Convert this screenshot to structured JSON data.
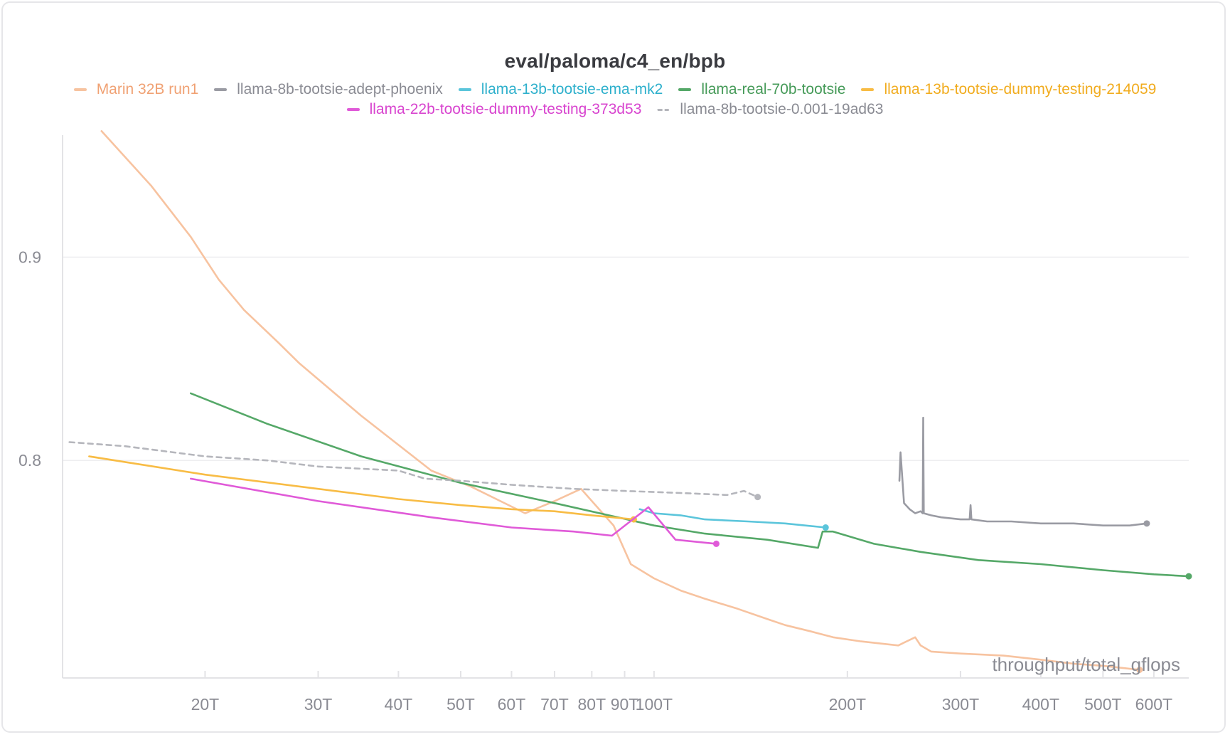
{
  "chart_data": {
    "type": "line",
    "title": "eval/paloma/c4_en/bpb",
    "xlabel": "throughput/total_gflops",
    "ylabel": "",
    "x_scale": "log",
    "xlim": [
      12.0,
      680
    ],
    "ylim": [
      0.693,
      0.96
    ],
    "x_ticks": [
      {
        "v": 20,
        "label": "20T"
      },
      {
        "v": 30,
        "label": "30T"
      },
      {
        "v": 40,
        "label": "40T"
      },
      {
        "v": 50,
        "label": "50T"
      },
      {
        "v": 60,
        "label": "60T"
      },
      {
        "v": 70,
        "label": "70T"
      },
      {
        "v": 80,
        "label": "80T"
      },
      {
        "v": 90,
        "label": "90T"
      },
      {
        "v": 100,
        "label": "100T"
      },
      {
        "v": 200,
        "label": "200T"
      },
      {
        "v": 300,
        "label": "300T"
      },
      {
        "v": 400,
        "label": "400T"
      },
      {
        "v": 500,
        "label": "500T"
      },
      {
        "v": 600,
        "label": "600T"
      }
    ],
    "y_ticks": [
      {
        "v": 0.9,
        "label": "0.9"
      },
      {
        "v": 0.8,
        "label": "0.8"
      }
    ],
    "grid": true,
    "legend_position": "top",
    "series": [
      {
        "name": "Marin 32B run1",
        "color": "#f7c3a0",
        "dashed": false,
        "end_marker": true,
        "x": [
          13.8,
          16.5,
          19.0,
          21.0,
          23.0,
          26.0,
          28.0,
          35.0,
          45.0,
          52.0,
          63.0,
          70.0,
          77.0,
          86.5,
          92.0,
          100.0,
          110.0,
          120.0,
          135.0,
          150.0,
          160.0,
          175.0,
          190.0,
          210.0,
          240.0,
          255.0,
          260.0,
          270.0,
          300.0,
          350.0,
          400.0,
          450.0,
          500.0,
          570.0
        ],
        "y": [
          0.962,
          0.935,
          0.91,
          0.889,
          0.874,
          0.858,
          0.848,
          0.822,
          0.795,
          0.787,
          0.774,
          0.78,
          0.786,
          0.768,
          0.749,
          0.742,
          0.736,
          0.732,
          0.727,
          0.722,
          0.719,
          0.716,
          0.713,
          0.711,
          0.709,
          0.713,
          0.709,
          0.706,
          0.705,
          0.704,
          0.702,
          0.7,
          0.699,
          0.697
        ]
      },
      {
        "name": "llama-8b-tootsie-adept-phoenix",
        "color": "#9a9ba3",
        "dashed": false,
        "end_marker": true,
        "x": [
          241.0,
          242.0,
          245.0,
          250.0,
          255.0,
          260.0,
          262.0,
          262.5,
          263.0,
          270.0,
          280.0,
          300.0,
          310.0,
          311.0,
          312.0,
          330.0,
          360.0,
          400.0,
          450.0,
          500.0,
          550.0,
          585.0
        ],
        "y": [
          0.79,
          0.804,
          0.779,
          0.776,
          0.774,
          0.775,
          0.774,
          0.821,
          0.774,
          0.773,
          0.772,
          0.771,
          0.771,
          0.778,
          0.771,
          0.77,
          0.77,
          0.769,
          0.769,
          0.768,
          0.768,
          0.769
        ]
      },
      {
        "name": "llama-13b-tootsie-ema-mk2",
        "color": "#5bc5db",
        "dashed": false,
        "end_marker": true,
        "x": [
          95.0,
          100.0,
          110.0,
          120.0,
          140.0,
          160.0,
          185.0
        ],
        "y": [
          0.776,
          0.774,
          0.773,
          0.771,
          0.77,
          0.769,
          0.767
        ]
      },
      {
        "name": "llama-real-70b-tootsie",
        "color": "#55a868",
        "dashed": false,
        "end_marker": true,
        "x": [
          19.0,
          25.0,
          35.0,
          50.0,
          70.0,
          100.0,
          120.0,
          150.0,
          180.0,
          183.0,
          190.0,
          220.0,
          260.0,
          320.0,
          400.0,
          500.0,
          600.0,
          680.0
        ],
        "y": [
          0.833,
          0.818,
          0.802,
          0.789,
          0.779,
          0.768,
          0.764,
          0.761,
          0.757,
          0.765,
          0.765,
          0.759,
          0.755,
          0.751,
          0.749,
          0.746,
          0.744,
          0.743
        ]
      },
      {
        "name": "llama-13b-tootsie-dummy-testing-214059",
        "color": "#f8bc45",
        "dashed": false,
        "end_marker": true,
        "x": [
          13.2,
          20.0,
          30.0,
          40.0,
          50.0,
          60.0,
          70.0,
          80.0,
          93.0
        ],
        "y": [
          0.802,
          0.793,
          0.786,
          0.781,
          0.778,
          0.776,
          0.775,
          0.773,
          0.771
        ]
      },
      {
        "name": "llama-22b-tootsie-dummy-testing-373d53",
        "color": "#e05ad8",
        "dashed": false,
        "end_marker": true,
        "x": [
          19.0,
          30.0,
          45.0,
          60.0,
          75.0,
          86.0,
          98.0,
          108.0,
          125.0
        ],
        "y": [
          0.791,
          0.78,
          0.772,
          0.767,
          0.765,
          0.763,
          0.777,
          0.761,
          0.759
        ]
      },
      {
        "name": "llama-8b-tootsie-0.001-19ad63",
        "color": "#b5b6bc",
        "dashed": true,
        "end_marker": true,
        "x": [
          12.3,
          15.0,
          20.0,
          25.0,
          30.0,
          40.0,
          44.0,
          50.0,
          60.0,
          75.0,
          90.0,
          110.0,
          130.0,
          138.0,
          145.0
        ],
        "y": [
          0.809,
          0.807,
          0.802,
          0.8,
          0.797,
          0.795,
          0.791,
          0.79,
          0.788,
          0.786,
          0.785,
          0.784,
          0.783,
          0.785,
          0.782
        ]
      }
    ]
  }
}
